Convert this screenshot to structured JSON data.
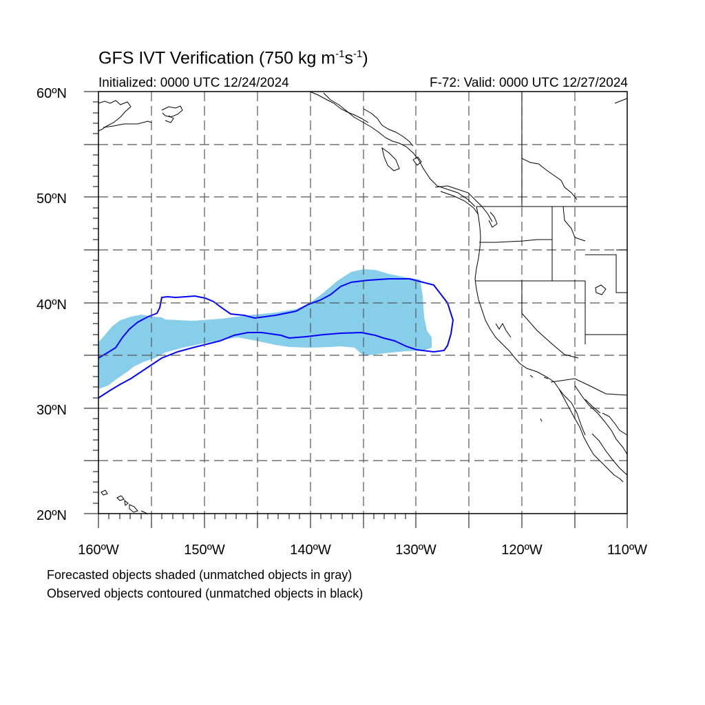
{
  "title": {
    "main": "GFS IVT Verification (750 kg m",
    "exp1": "-1",
    "mid": "s",
    "exp2": "-1",
    "end": ")"
  },
  "subtitle": {
    "initialized": "Initialized: 0000 UTC 12/24/2024",
    "valid": "F-72: Valid: 0000 UTC 12/27/2024"
  },
  "map": {
    "projection": "cylindrical equidistant",
    "lon_range": [
      -160,
      -110
    ],
    "lat_range": [
      20,
      60
    ],
    "lat_labels": [
      "20ºN",
      "30ºN",
      "40ºN",
      "50ºN",
      "60ºN"
    ],
    "lon_labels": [
      "160ºW",
      "150ºW",
      "140ºW",
      "130ºW",
      "120ºW",
      "110ºW"
    ],
    "gridlines": "dashed every 5 degrees",
    "colors": {
      "forecast_shading": "#87ceeb",
      "observed_contour": "#0000ff",
      "coastline": "#000000",
      "gridline": "#555555"
    }
  },
  "notes": {
    "line1": "Forecasted objects shaded (unmatched objects in gray)",
    "line2": "Observed objects contoured (unmatched objects in black)"
  }
}
